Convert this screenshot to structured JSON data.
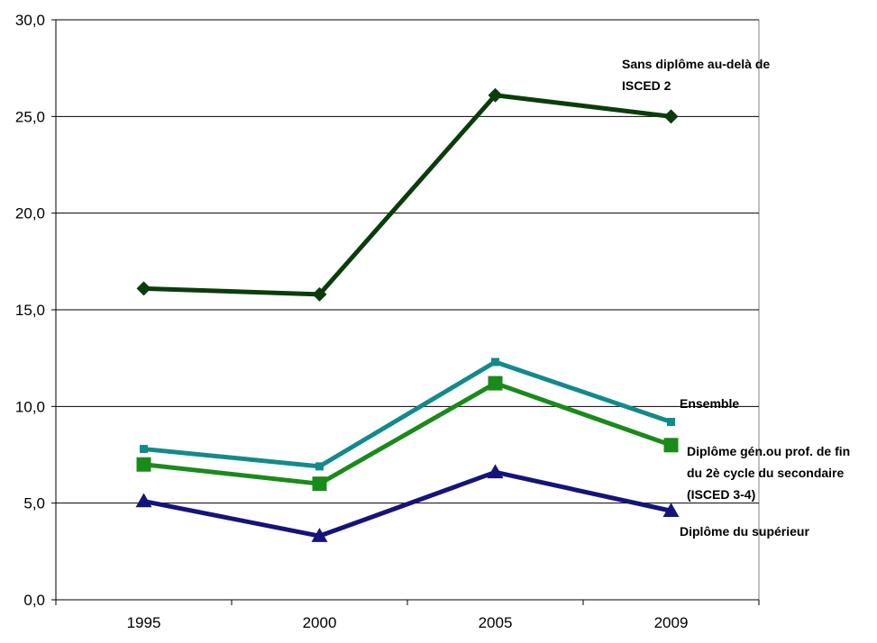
{
  "chart_data": {
    "type": "line",
    "categories": [
      "1995",
      "2000",
      "2005",
      "2009"
    ],
    "y_ticks": [
      "0,0",
      "5,0",
      "10,0",
      "15,0",
      "20,0",
      "25,0",
      "30,0"
    ],
    "ylim": [
      0,
      30
    ],
    "grid": true,
    "legend": "direct labels at line ends",
    "series": [
      {
        "name": "Sans diplôme au-delà de ISCED 2",
        "label_lines": [
          "Sans diplôme au-delà de",
          "ISCED 2"
        ],
        "values": [
          16.1,
          15.8,
          26.1,
          25.0
        ],
        "color": "#0b3d0b",
        "marker": "diamond"
      },
      {
        "name": "Ensemble",
        "label_lines": [
          "Ensemble"
        ],
        "values": [
          7.8,
          6.9,
          12.3,
          9.2
        ],
        "color": "#138a8a",
        "marker": "small-square"
      },
      {
        "name": "Diplôme gén.ou prof. de fin du 2è cycle du secondaire (ISCED 3-4)",
        "label_lines": [
          "Diplôme gén.ou prof. de fin",
          "du 2è cycle du secondaire",
          "(ISCED 3-4)"
        ],
        "values": [
          7.0,
          6.0,
          11.2,
          8.0
        ],
        "color": "#1a8a1a",
        "marker": "square"
      },
      {
        "name": "Diplôme du supérieur",
        "label_lines": [
          "Diplôme du supérieur"
        ],
        "values": [
          5.1,
          3.3,
          6.6,
          4.6
        ],
        "color": "#14147a",
        "marker": "triangle"
      }
    ]
  }
}
